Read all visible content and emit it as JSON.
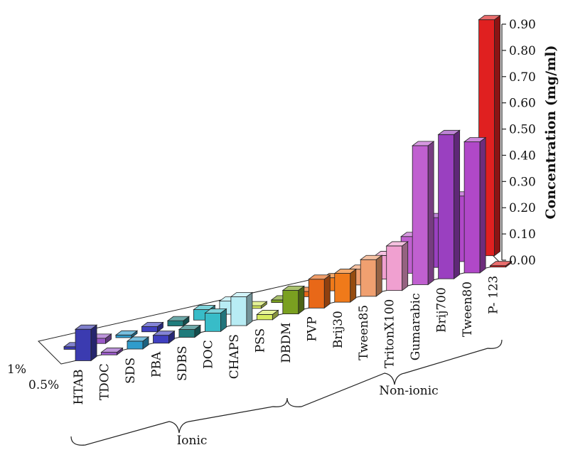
{
  "chart_data": {
    "type": "bar",
    "subtype": "3d-grouped-bar",
    "title": "",
    "ylabel": "Concentration (mg/ml)",
    "ylim": [
      0,
      0.9
    ],
    "yticks": [
      "0.00",
      "0.10",
      "0.20",
      "0.30",
      "0.40",
      "0.50",
      "0.60",
      "0.70",
      "0.80",
      "0.90"
    ],
    "depth_labels": [
      "1%",
      "0.5%"
    ],
    "categories": [
      "HTAB",
      "TDOC",
      "SDS",
      "PBA",
      "SDBS",
      "DOC",
      "CHAPS",
      "PSS",
      "DBDM",
      "PVP",
      "Brij30",
      "Tween85",
      "TritonX100",
      "Gumarabic",
      "Brij700",
      "Tween80",
      "P- 123"
    ],
    "colors": [
      "#3b3bb0",
      "#9a5ac8",
      "#2f9ccc",
      "#4040c0",
      "#207c7c",
      "#38bcc8",
      "#b8ecf4",
      "#d8ec60",
      "#7aa020",
      "#e86818",
      "#f07a1a",
      "#f0a070",
      "#f0a0d0",
      "#c060d0",
      "#9a40c0",
      "#b048c8",
      "#e02020"
    ],
    "series": [
      {
        "name": "1%",
        "values": [
          0.01,
          0.02,
          0.01,
          0.02,
          0.02,
          0.04,
          0.05,
          0.01,
          0.01,
          0.02,
          0.05,
          0.06,
          0.09,
          0.14,
          0.19,
          0.25,
          0.9
        ]
      },
      {
        "name": "0.5%",
        "values": [
          0.12,
          0.01,
          0.03,
          0.03,
          0.03,
          0.07,
          0.11,
          0.02,
          0.09,
          0.11,
          0.11,
          0.14,
          0.17,
          0.53,
          0.55,
          0.5,
          0.0
        ]
      }
    ],
    "groups": [
      {
        "label": "Ionic",
        "from": 0,
        "to": 7
      },
      {
        "label": "Non-ionic",
        "from": 8,
        "to": 16
      }
    ],
    "grid": false,
    "legend": "none"
  }
}
